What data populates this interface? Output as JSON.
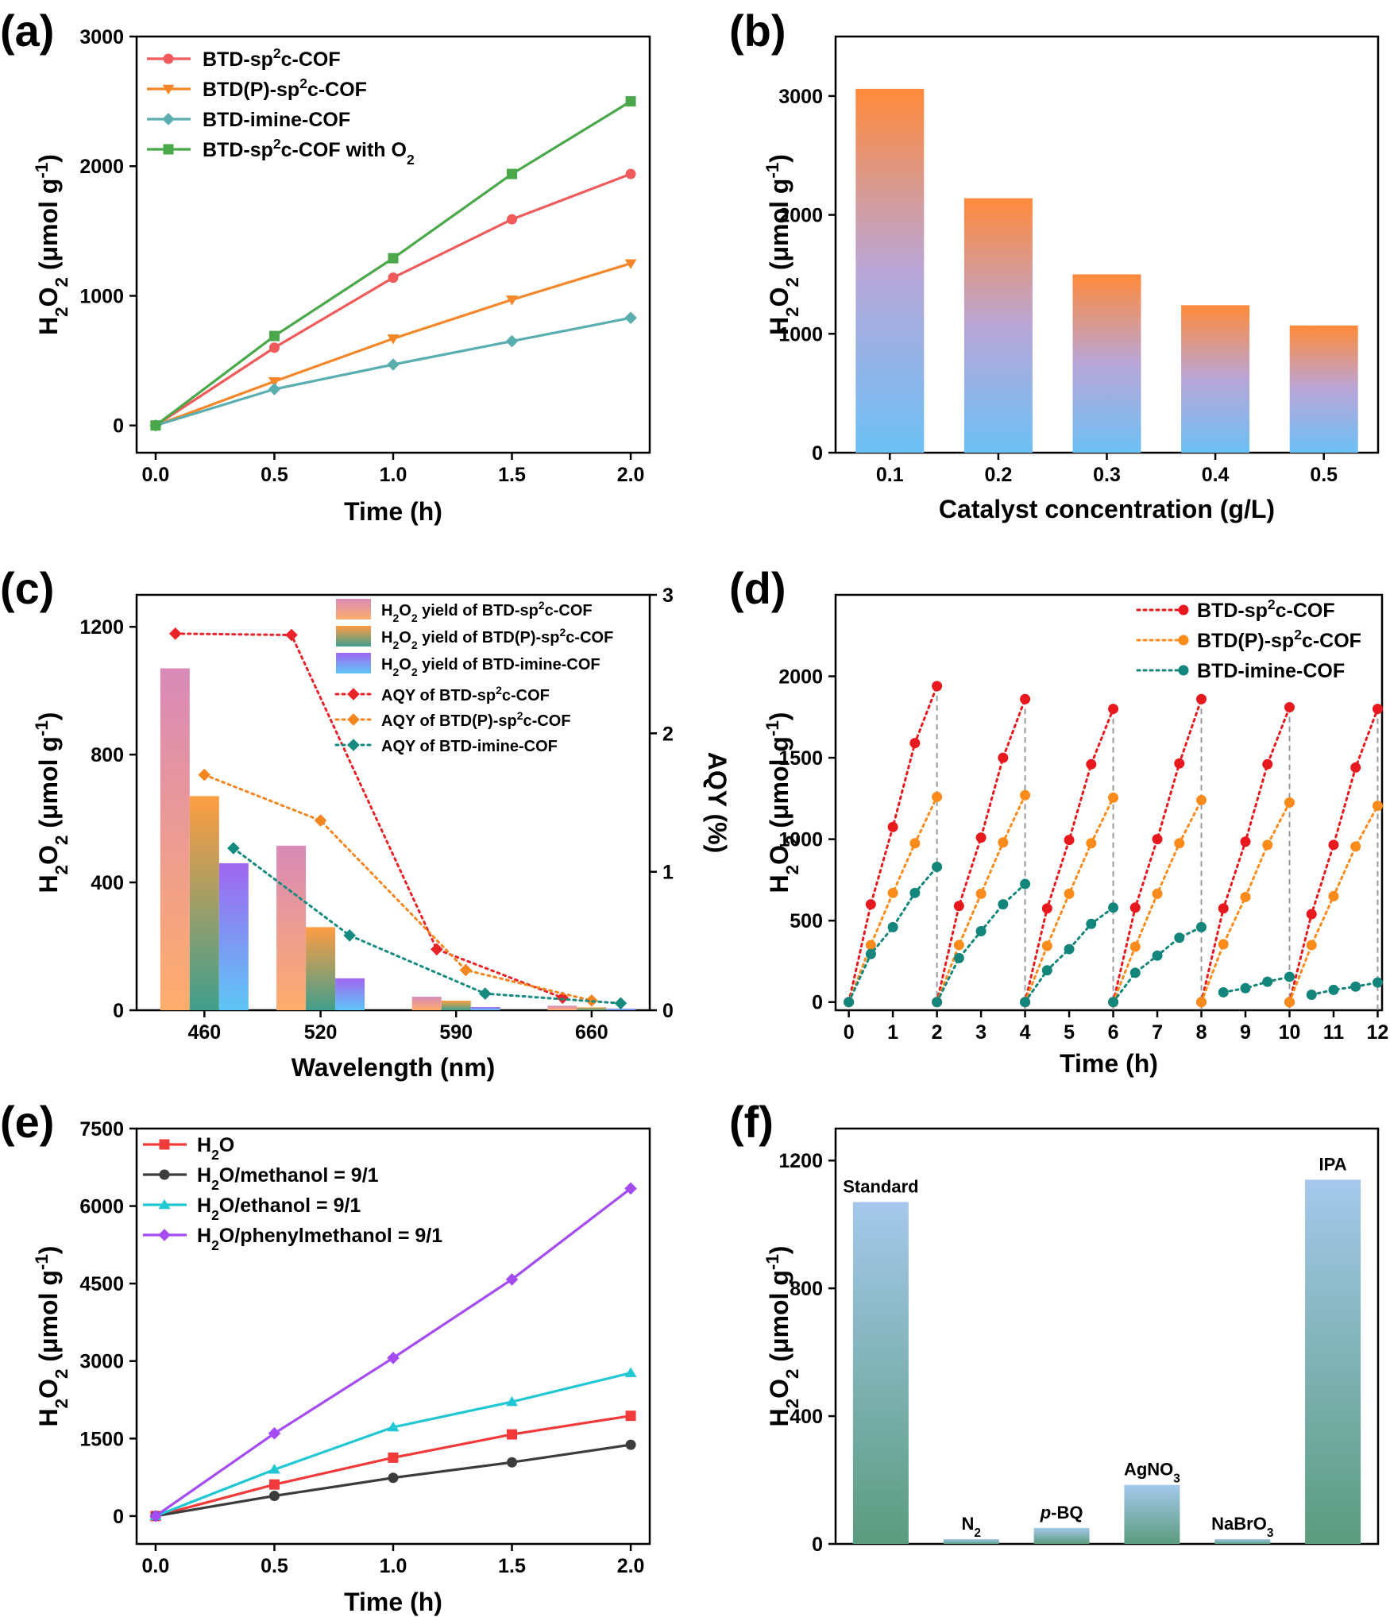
{
  "chart_data": [
    {
      "id": "a",
      "panel_label": "(a)",
      "type": "line",
      "xlabel": "Time (h)",
      "ylabel": "H₂O₂ (μmol g⁻¹)",
      "xlim": [
        -0.08,
        2.08
      ],
      "ylim": [
        -210,
        3000
      ],
      "xticks": [
        0.0,
        0.5,
        1.0,
        1.5,
        2.0
      ],
      "xtick_labels": [
        "0.0",
        "0.5",
        "1.0",
        "1.5",
        "2.0"
      ],
      "yticks": [
        0,
        1000,
        2000,
        3000
      ],
      "ytick_labels": [
        "0",
        "1000",
        "2000",
        "3000"
      ],
      "legend_position": "top-left",
      "x": [
        0,
        0.5,
        1.0,
        1.5,
        2.0
      ],
      "series": [
        {
          "name": "BTD-sp²c-COF",
          "color": "#f05a5a",
          "marker": "circle",
          "values": [
            0,
            600,
            1140,
            1590,
            1940
          ]
        },
        {
          "name": "BTD(P)-sp²c-COF",
          "color": "#f5872a",
          "marker": "triangle-down",
          "values": [
            0,
            340,
            670,
            970,
            1250
          ]
        },
        {
          "name": "BTD-imine-COF",
          "color": "#5aaeb0",
          "marker": "diamond",
          "values": [
            0,
            280,
            470,
            650,
            830
          ]
        },
        {
          "name": "BTD-sp²c-COF with O₂",
          "color": "#4aa84a",
          "marker": "square",
          "values": [
            0,
            690,
            1290,
            1940,
            2500
          ]
        }
      ]
    },
    {
      "id": "b",
      "panel_label": "(b)",
      "type": "bar",
      "xlabel": "Catalyst concentration (g/L)",
      "ylabel": "H₂O₂ (μmol g⁻¹)",
      "ylim": [
        0,
        3500
      ],
      "yticks": [
        0,
        1000,
        2000,
        3000
      ],
      "ytick_labels": [
        "0",
        "1000",
        "2000",
        "3000"
      ],
      "categories": [
        "0.1",
        "0.2",
        "0.3",
        "0.4",
        "0.5"
      ],
      "values": [
        3060,
        2140,
        1500,
        1240,
        1070
      ],
      "bar_gradient": [
        "#ff8a3a",
        "#b9a6d8",
        "#6cc0f5"
      ]
    },
    {
      "id": "c",
      "panel_label": "(c)",
      "type": "bar",
      "xlabel": "Wavelength (nm)",
      "ylabel": "H₂O₂ (μmol g⁻¹)",
      "y2label": "AQY (%)",
      "ylim": [
        0,
        1300
      ],
      "y2lim": [
        0,
        3
      ],
      "yticks": [
        0,
        400,
        800,
        1200
      ],
      "ytick_labels": [
        "0",
        "400",
        "800",
        "1200"
      ],
      "y2ticks": [
        0,
        1,
        2,
        3
      ],
      "y2tick_labels": [
        "0",
        "1",
        "2",
        "3"
      ],
      "xlim": [
        425,
        690
      ],
      "xticks": [
        460,
        520,
        590,
        660
      ],
      "xtick_labels": [
        "460",
        "520",
        "590",
        "660"
      ],
      "legend_position": "top-right",
      "bar_groups_x": [
        460,
        520,
        590,
        660
      ],
      "bar_series": [
        {
          "name": "H₂O₂ yield of BTD-sp²c-COF",
          "colors": [
            "#d98ab8",
            "#ffad6c"
          ],
          "values": [
            1070,
            515,
            42,
            14
          ]
        },
        {
          "name": "H₂O₂ yield of BTD(P)-sp²c-COF",
          "colors": [
            "#ff9d42",
            "#3f9e8c"
          ],
          "values": [
            670,
            260,
            30,
            9
          ]
        },
        {
          "name": "H₂O₂ yield of BTD-imine-COF",
          "colors": [
            "#a066f0",
            "#5ec6f7"
          ],
          "values": [
            460,
            100,
            10,
            5
          ]
        }
      ],
      "line_series": [
        {
          "name": "AQY of BTD-sp²c-COF",
          "color": "#e8232a",
          "marker": "diamond",
          "x": [
            445,
            505,
            580,
            645
          ],
          "values": [
            2.72,
            2.71,
            0.44,
            0.09
          ]
        },
        {
          "name": "AQY of BTD(P)-sp²c-COF",
          "color": "#f5861f",
          "marker": "diamond",
          "x": [
            460,
            520,
            595,
            660
          ],
          "values": [
            1.7,
            1.37,
            0.29,
            0.07
          ]
        },
        {
          "name": "AQY of BTD-imine-COF",
          "color": "#168a7f",
          "marker": "diamond",
          "x": [
            475,
            535,
            605,
            675
          ],
          "values": [
            1.17,
            0.54,
            0.12,
            0.05
          ]
        }
      ]
    },
    {
      "id": "d",
      "panel_label": "(d)",
      "type": "line",
      "xlabel": "Time (h)",
      "ylabel": "H₂O₂ (μmol g⁻¹)",
      "xlim": [
        -0.3,
        12.1
      ],
      "ylim": [
        -50,
        2500
      ],
      "xticks": [
        0,
        1,
        2,
        3,
        4,
        5,
        6,
        7,
        8,
        9,
        10,
        11,
        12
      ],
      "xtick_labels": [
        "0",
        "1",
        "2",
        "3",
        "4",
        "5",
        "6",
        "7",
        "8",
        "9",
        "10",
        "11",
        "12"
      ],
      "yticks": [
        0,
        500,
        1000,
        1500,
        2000
      ],
      "ytick_labels": [
        "0",
        "500",
        "1000",
        "1500",
        "2000"
      ],
      "legend_position": "top-right",
      "cycle_boundaries": [
        2,
        4,
        6,
        8,
        10,
        12
      ],
      "cycle_offsets": [
        0,
        0.5,
        1.0,
        1.5,
        2.0
      ],
      "series": [
        {
          "name": "BTD-sp²c-COF",
          "color": "#e8191e",
          "cycles": [
            [
              0,
              600,
              1075,
              1590,
              1940
            ],
            [
              0,
              590,
              1010,
              1500,
              1860
            ],
            [
              0,
              575,
              995,
              1460,
              1800
            ],
            [
              0,
              580,
              1000,
              1465,
              1860
            ],
            [
              0,
              575,
              985,
              1460,
              1810
            ],
            [
              0,
              540,
              965,
              1440,
              1800
            ]
          ]
        },
        {
          "name": "BTD(P)-sp²c-COF",
          "color": "#fb8c1c",
          "cycles": [
            [
              0,
              350,
              670,
              975,
              1260
            ],
            [
              0,
              350,
              665,
              980,
              1270
            ],
            [
              0,
              345,
              665,
              975,
              1255
            ],
            [
              0,
              340,
              665,
              975,
              1240
            ],
            [
              0,
              355,
              645,
              965,
              1225
            ],
            [
              0,
              350,
              650,
              955,
              1205
            ]
          ]
        },
        {
          "name": "BTD-imine-COF",
          "color": "#13857a",
          "cycles": [
            [
              0,
              295,
              460,
              670,
              830
            ],
            [
              0,
              270,
              435,
              600,
              725
            ],
            [
              0,
              195,
              325,
              480,
              580
            ],
            [
              0,
              180,
              285,
              395,
              460
            ],
            [
              60,
              85,
              125,
              155
            ],
            [
              45,
              75,
              95,
              120
            ]
          ]
        }
      ]
    },
    {
      "id": "e",
      "panel_label": "(e)",
      "type": "line",
      "xlabel": "Time (h)",
      "ylabel": "H₂O₂ (μmol g⁻¹)",
      "xlim": [
        -0.08,
        2.08
      ],
      "ylim": [
        -540,
        7500
      ],
      "xticks": [
        0.0,
        0.5,
        1.0,
        1.5,
        2.0
      ],
      "xtick_labels": [
        "0.0",
        "0.5",
        "1.0",
        "1.5",
        "2.0"
      ],
      "yticks": [
        0,
        1500,
        3000,
        4500,
        6000,
        7500
      ],
      "ytick_labels": [
        "0",
        "1500",
        "3000",
        "4500",
        "6000",
        "7500"
      ],
      "legend_position": "top-left",
      "x": [
        0,
        0.5,
        1.0,
        1.5,
        2.0
      ],
      "series": [
        {
          "name": "H₂O",
          "color": "#f23a3a",
          "marker": "square",
          "values": [
            0,
            610,
            1130,
            1580,
            1940
          ]
        },
        {
          "name": "H₂O/methanol = 9/1",
          "color": "#3c3c3c",
          "marker": "circle",
          "values": [
            0,
            390,
            740,
            1040,
            1380
          ]
        },
        {
          "name": "H₂O/ethanol = 9/1",
          "color": "#21c7d2",
          "marker": "triangle-up",
          "values": [
            0,
            900,
            1720,
            2210,
            2770
          ]
        },
        {
          "name": "H₂O/phenylmethanol = 9/1",
          "color": "#a44cf2",
          "marker": "diamond",
          "values": [
            0,
            1600,
            3060,
            4580,
            6340
          ]
        }
      ]
    },
    {
      "id": "f",
      "panel_label": "(f)",
      "type": "bar",
      "ylabel": "H₂O₂ (μmol g⁻¹)",
      "ylim": [
        0,
        1300
      ],
      "yticks": [
        0,
        400,
        800,
        1200
      ],
      "ytick_labels": [
        "0",
        "400",
        "800",
        "1200"
      ],
      "categories": [
        "Standard",
        "N₂",
        "p-BQ",
        "AgNO₃",
        "NaBrO₃",
        "IPA"
      ],
      "values": [
        1070,
        15,
        50,
        185,
        15,
        1140
      ],
      "bar_gradient": [
        "#a5c8ec",
        "#5a9c7e"
      ]
    }
  ]
}
